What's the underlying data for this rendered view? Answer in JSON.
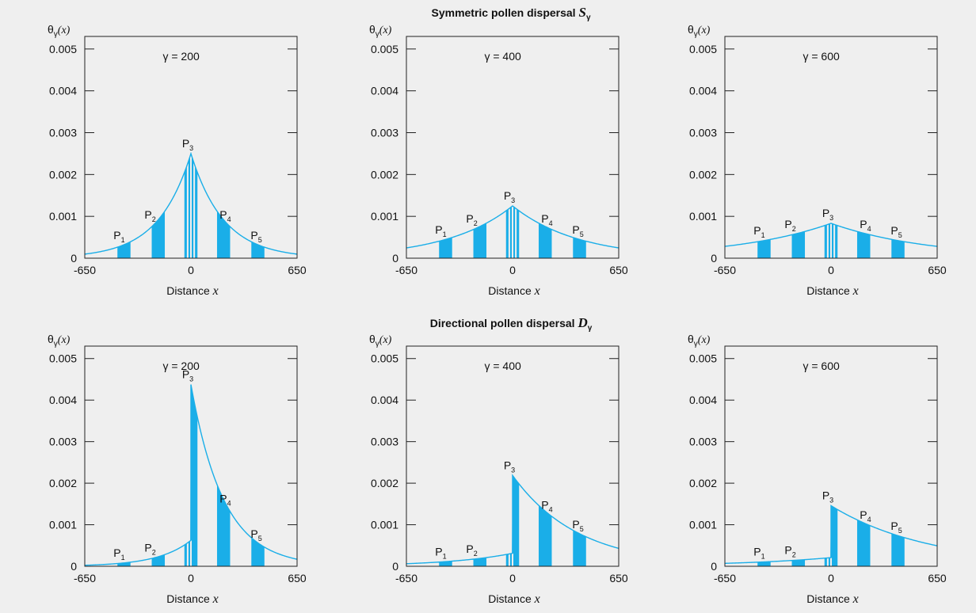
{
  "section_titles": {
    "top": {
      "prefix": "Symmetric pollen dispersal ",
      "symbol": "S",
      "subscript": "γ"
    },
    "bottom": {
      "prefix": "Directional pollen dispersal ",
      "symbol": "D",
      "subscript": "γ"
    }
  },
  "colors": {
    "fill": "#1aaee8",
    "curve": "#1aaee8",
    "axis": "#222222",
    "background": "#efefef"
  },
  "chart_data": [
    {
      "type": "area",
      "panel": "symmetric-200",
      "subtitle": "γ = 200",
      "ylabel": {
        "theta": "θ",
        "sub": "γ",
        "arg": "(x)"
      },
      "xlabel": {
        "text": "Distance ",
        "var": "x"
      },
      "xlim": [
        -650,
        650
      ],
      "ylim": [
        0,
        0.0053
      ],
      "xticks": [
        "-650",
        "0",
        "650"
      ],
      "yticks": [
        "0",
        "0.001",
        "0.002",
        "0.003",
        "0.004",
        "0.005"
      ],
      "model": {
        "kind": "symmetric",
        "gamma": 200
      },
      "plots": [
        {
          "name": "P1",
          "x": [
            -450,
            -370
          ],
          "label_x": -420
        },
        {
          "name": "P2",
          "x": [
            -240,
            -160
          ],
          "label_x": -230
        },
        {
          "name": "P3",
          "x": [
            -40,
            40
          ],
          "label_x": 0
        },
        {
          "name": "P4",
          "x": [
            160,
            240
          ],
          "label_x": 230
        },
        {
          "name": "P5",
          "x": [
            370,
            450
          ],
          "label_x": 420
        }
      ]
    },
    {
      "type": "area",
      "panel": "symmetric-400",
      "subtitle": "γ = 400",
      "ylabel": {
        "theta": "θ",
        "sub": "γ",
        "arg": "(x)"
      },
      "xlabel": {
        "text": "Distance ",
        "var": "x"
      },
      "xlim": [
        -650,
        650
      ],
      "ylim": [
        0,
        0.0053
      ],
      "xticks": [
        "-650",
        "0",
        "650"
      ],
      "yticks": [
        "0",
        "0.001",
        "0.002",
        "0.003",
        "0.004",
        "0.005"
      ],
      "model": {
        "kind": "symmetric",
        "gamma": 400
      },
      "plots": [
        {
          "name": "P1",
          "x": [
            -450,
            -370
          ],
          "label_x": -420
        },
        {
          "name": "P2",
          "x": [
            -240,
            -160
          ],
          "label_x": -230
        },
        {
          "name": "P3",
          "x": [
            -40,
            40
          ],
          "label_x": 0
        },
        {
          "name": "P4",
          "x": [
            160,
            240
          ],
          "label_x": 230
        },
        {
          "name": "P5",
          "x": [
            370,
            450
          ],
          "label_x": 420
        }
      ]
    },
    {
      "type": "area",
      "panel": "symmetric-600",
      "subtitle": "γ = 600",
      "ylabel": {
        "theta": "θ",
        "sub": "γ",
        "arg": "(x)"
      },
      "xlabel": {
        "text": "Distance ",
        "var": "x"
      },
      "xlim": [
        -650,
        650
      ],
      "ylim": [
        0,
        0.0053
      ],
      "xticks": [
        "-650",
        "0",
        "650"
      ],
      "yticks": [
        "0",
        "0.001",
        "0.002",
        "0.003",
        "0.004",
        "0.005"
      ],
      "model": {
        "kind": "symmetric",
        "gamma": 600
      },
      "plots": [
        {
          "name": "P1",
          "x": [
            -450,
            -370
          ],
          "label_x": -420
        },
        {
          "name": "P2",
          "x": [
            -240,
            -160
          ],
          "label_x": -230
        },
        {
          "name": "P3",
          "x": [
            -40,
            40
          ],
          "label_x": 0
        },
        {
          "name": "P4",
          "x": [
            160,
            240
          ],
          "label_x": 230
        },
        {
          "name": "P5",
          "x": [
            370,
            450
          ],
          "label_x": 420
        }
      ]
    },
    {
      "type": "area",
      "panel": "directional-200",
      "subtitle": "γ = 200",
      "ylabel": {
        "theta": "θ",
        "sub": "γ",
        "arg": "(x)"
      },
      "xlabel": {
        "text": "Distance ",
        "var": "x"
      },
      "xlim": [
        -650,
        650
      ],
      "ylim": [
        0,
        0.0053
      ],
      "xticks": [
        "-650",
        "0",
        "650"
      ],
      "yticks": [
        "0",
        "0.001",
        "0.002",
        "0.003",
        "0.004",
        "0.005"
      ],
      "model": {
        "kind": "directional",
        "gamma": 200
      },
      "plots": [
        {
          "name": "P1",
          "x": [
            -450,
            -370
          ],
          "label_x": -420
        },
        {
          "name": "P2",
          "x": [
            -240,
            -160
          ],
          "label_x": -230
        },
        {
          "name": "P3",
          "x": [
            -40,
            40
          ],
          "label_x": 0
        },
        {
          "name": "P4",
          "x": [
            160,
            240
          ],
          "label_x": 230
        },
        {
          "name": "P5",
          "x": [
            370,
            450
          ],
          "label_x": 420
        }
      ]
    },
    {
      "type": "area",
      "panel": "directional-400",
      "subtitle": "γ = 400",
      "ylabel": {
        "theta": "θ",
        "sub": "γ",
        "arg": "(x)"
      },
      "xlabel": {
        "text": "Distance ",
        "var": "x"
      },
      "xlim": [
        -650,
        650
      ],
      "ylim": [
        0,
        0.0053
      ],
      "xticks": [
        "-650",
        "0",
        "650"
      ],
      "yticks": [
        "0",
        "0.001",
        "0.002",
        "0.003",
        "0.004",
        "0.005"
      ],
      "model": {
        "kind": "directional",
        "gamma": 400
      },
      "plots": [
        {
          "name": "P1",
          "x": [
            -450,
            -370
          ],
          "label_x": -420
        },
        {
          "name": "P2",
          "x": [
            -240,
            -160
          ],
          "label_x": -230
        },
        {
          "name": "P3",
          "x": [
            -40,
            40
          ],
          "label_x": 0
        },
        {
          "name": "P4",
          "x": [
            160,
            240
          ],
          "label_x": 230
        },
        {
          "name": "P5",
          "x": [
            370,
            450
          ],
          "label_x": 420
        }
      ]
    },
    {
      "type": "area",
      "panel": "directional-600",
      "subtitle": "γ = 600",
      "ylabel": {
        "theta": "θ",
        "sub": "γ",
        "arg": "(x)"
      },
      "xlabel": {
        "text": "Distance ",
        "var": "x"
      },
      "xlim": [
        -650,
        650
      ],
      "ylim": [
        0,
        0.0053
      ],
      "xticks": [
        "-650",
        "0",
        "650"
      ],
      "yticks": [
        "0",
        "0.001",
        "0.002",
        "0.003",
        "0.004",
        "0.005"
      ],
      "model": {
        "kind": "directional",
        "gamma": 600
      },
      "plots": [
        {
          "name": "P1",
          "x": [
            -450,
            -370
          ],
          "label_x": -420
        },
        {
          "name": "P2",
          "x": [
            -240,
            -160
          ],
          "label_x": -230
        },
        {
          "name": "P3",
          "x": [
            -40,
            40
          ],
          "label_x": 0
        },
        {
          "name": "P4",
          "x": [
            160,
            240
          ],
          "label_x": 230
        },
        {
          "name": "P5",
          "x": [
            370,
            450
          ],
          "label_x": 420
        }
      ]
    }
  ]
}
